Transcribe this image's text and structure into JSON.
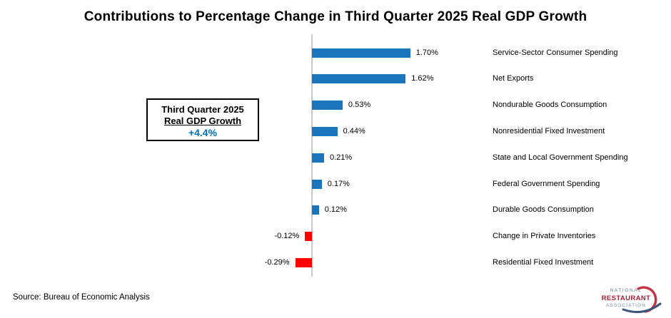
{
  "title": "Contributions to Percentage Change in Third Quarter 2025 Real GDP Growth",
  "source": "Source: Bureau of Economic Analysis",
  "callout": {
    "line1": "Third Quarter 2025",
    "line2": "Real GDP Growth",
    "value": "+4.4%",
    "value_color": "#0070C0"
  },
  "logo": {
    "line1": "NATIONAL",
    "line2": "RESTAURANT",
    "line3": "ASSOCIATION",
    "navy": "#5E7090",
    "light_navy": "#7D8CA4",
    "red": "#A81E35",
    "arc_red": "#C63041",
    "swoosh_blue": "#3C5578"
  },
  "chart_data": {
    "type": "bar",
    "orientation": "horizontal",
    "title": "Contributions to Percentage Change in Third Quarter 2025 Real GDP Growth",
    "categories": [
      "Service-Sector Consumer Spending",
      "Net Exports",
      "Nondurable Goods Consumption",
      "Nonresidential Fixed Investment",
      "State and Local Government Spending",
      "Federal Government Spending",
      "Durable Goods Consumption",
      "Change in Private Inventories",
      "Residential Fixed Investment"
    ],
    "values": [
      1.7,
      1.62,
      0.53,
      0.44,
      0.21,
      0.17,
      0.12,
      -0.12,
      -0.29
    ],
    "value_labels": [
      "1.70%",
      "1.62%",
      "0.53%",
      "0.44%",
      "0.21%",
      "0.17%",
      "0.12%",
      "-0.12%",
      "-0.29%"
    ],
    "positive_color": "#1B75BC",
    "negative_color": "#FF0000",
    "axis_line_color": "#C9C9C9",
    "grid": false,
    "legend": false,
    "value_axis_labels_visible": false
  }
}
